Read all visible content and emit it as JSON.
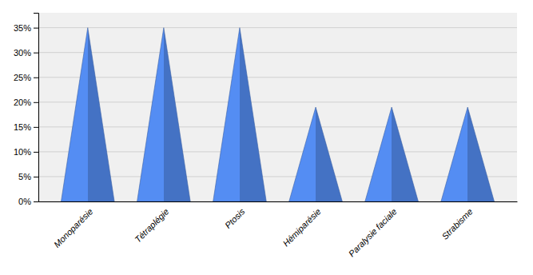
{
  "chart_data": {
    "type": "bar",
    "categories": [
      "Monoparésie",
      "Tétraplégie",
      "Ptosis",
      "Hémiparésie",
      "Paralysie faciale",
      "Strabisme"
    ],
    "values": [
      0.35,
      0.35,
      0.35,
      0.19,
      0.19,
      0.19
    ],
    "color": "#4472C4",
    "ylim": [
      0,
      0.38
    ],
    "yticks": [
      {
        "value": 0.0,
        "label": "0%"
      },
      {
        "value": 0.05,
        "label": "5%"
      },
      {
        "value": 0.1,
        "label": "10%"
      },
      {
        "value": 0.15,
        "label": "15%"
      },
      {
        "value": 0.2,
        "label": "20%"
      },
      {
        "value": 0.25,
        "label": "25%"
      },
      {
        "value": 0.3,
        "label": "30%"
      },
      {
        "value": 0.35,
        "label": "35%"
      }
    ],
    "grid": true
  }
}
